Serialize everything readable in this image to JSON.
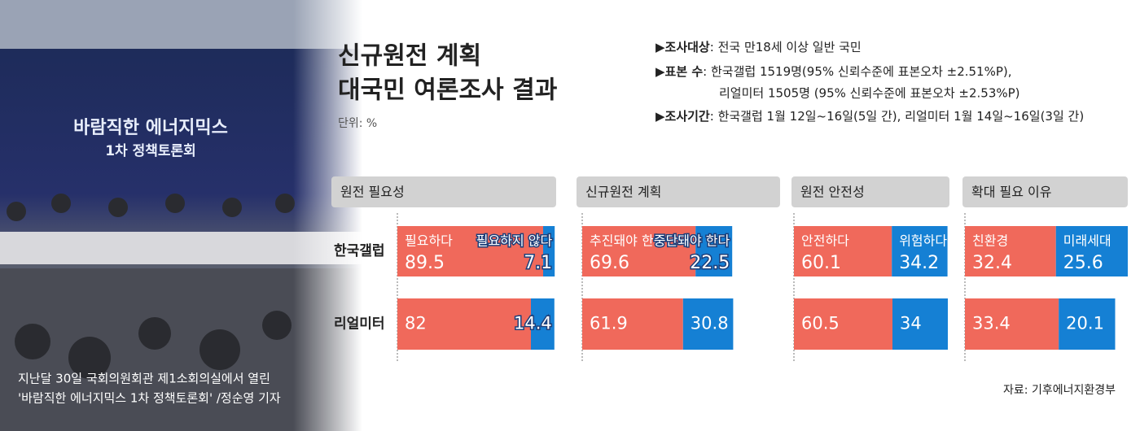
{
  "title_lines": [
    "신규원전 계획",
    "대국민 여론조사 결과"
  ],
  "unit": "단위: %",
  "survey_info": [
    {
      "label": "▶조사대상",
      "text": ": 전국 만18세 이상 일반 국민"
    },
    {
      "label": "▶표본 수",
      "text": ": 한국갤럽 1519명(95% 신뢰수준에 표본오차 ±2.51%P),",
      "continuation": "리얼미터 1505명 (95% 신뢰수준에 표본오차 ±2.53%P)"
    },
    {
      "label": "▶조사기간",
      "text": ": 한국갤럽 1월 12일~16일(5일 간), 리얼미터 1월 14일~16일(3일 간)"
    }
  ],
  "photo": {
    "screen_text": [
      "바람직한 에너지믹스",
      "1차 정책토론회"
    ],
    "caption": [
      "지난달 30일 국회의원회관 제1소회의실에서 열린",
      "'바람직한 에너지믹스 1차 정책토론회' /정순영 기자"
    ]
  },
  "source": "자료: 기후에너지환경부",
  "chart_data": [
    {
      "type": "stacked-bar",
      "orientation": "horizontal",
      "title": "원전 필요성",
      "categories": [
        "한국갤럽",
        "리얼미터"
      ],
      "xlim": [
        0,
        100
      ],
      "series": [
        {
          "name": "필요하다",
          "color": "#f0695b",
          "values": [
            89.5,
            82
          ]
        },
        {
          "name": "필요하지 않다",
          "color": "#1580d4",
          "values": [
            7.1,
            14.4
          ]
        }
      ]
    },
    {
      "type": "stacked-bar",
      "orientation": "horizontal",
      "title": "신규원전 계획",
      "xlim": [
        0,
        100
      ],
      "series": [
        {
          "name": "추진돼야 한다",
          "color": "#f0695b",
          "values": [
            69.6,
            61.9
          ]
        },
        {
          "name": "중단돼야 한다",
          "color": "#1580d4",
          "values": [
            22.5,
            30.8
          ]
        }
      ]
    },
    {
      "type": "stacked-bar",
      "orientation": "horizontal",
      "title": "원전 안전성",
      "xlim": [
        0,
        100
      ],
      "series": [
        {
          "name": "안전하다",
          "color": "#f0695b",
          "values": [
            60.1,
            60.5
          ]
        },
        {
          "name": "위험하다",
          "color": "#1580d4",
          "values": [
            34.2,
            34
          ]
        }
      ]
    },
    {
      "type": "stacked-bar",
      "orientation": "horizontal",
      "title": "확대 필요 이유",
      "xlim": [
        0,
        58
      ],
      "series": [
        {
          "name": "친환경",
          "color": "#f0695b",
          "values": [
            32.4,
            33.4
          ]
        },
        {
          "name": "미래세대",
          "color": "#1580d4",
          "values": [
            25.6,
            20.1
          ]
        }
      ]
    }
  ]
}
